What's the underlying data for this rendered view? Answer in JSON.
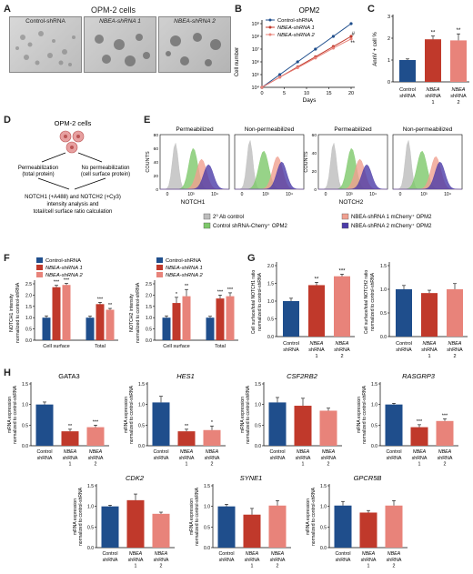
{
  "panels": {
    "A": {
      "letter": "A",
      "title": "OPM-2 cells",
      "image_labels": [
        "Control-shRNA",
        "NBEA-shRNA 1",
        "NBEA-shRNA 2"
      ]
    },
    "B": {
      "letter": "B",
      "chart_data": {
        "type": "line",
        "title": "OPM2",
        "xlabel": "Days",
        "ylabel": "Cell number",
        "x": [
          0,
          4,
          8,
          12,
          16,
          20
        ],
        "x_ticks": [
          "0",
          "5",
          "10",
          "15",
          "20"
        ],
        "y_ticks": [
          "10⁴",
          "10⁵",
          "10⁶",
          "10⁷",
          "10⁸",
          "10⁹"
        ],
        "log_y": true,
        "series": [
          {
            "name": "Control-shRNA",
            "color": "#1f4e8c",
            "values": [
              10000,
              100000,
              1000000,
              10000000,
              100000000,
              1000000000
            ]
          },
          {
            "name": "NBEA-shRNA 1",
            "color": "#c0392b",
            "values": [
              10000,
              63000,
              400000,
              2500000,
              16000000,
              100000000
            ]
          },
          {
            "name": "NBEA-shRNA 2",
            "color": "#e8837a",
            "values": [
              10000,
              63000,
              350000,
              2000000,
              12000000,
              63000000
            ]
          }
        ],
        "annotations": [
          "#",
          "**"
        ]
      }
    },
    "C": {
      "letter": "C",
      "chart_data": {
        "type": "bar",
        "ylabel": "AnnV + cell %",
        "y_ticks": [
          "0",
          "1",
          "2",
          "3"
        ],
        "ylim": [
          0,
          3
        ],
        "categories": [
          "Control shRNA",
          "NBEA shRNA 1",
          "NBEA shRNA 2"
        ],
        "values": [
          1.0,
          1.95,
          1.9
        ],
        "errors": [
          0.05,
          0.15,
          0.3
        ],
        "sig": [
          "",
          "**",
          "**"
        ],
        "colors": [
          "#1f4e8c",
          "#c0392b",
          "#e8837a"
        ]
      }
    },
    "D": {
      "letter": "D",
      "title": "OPM-2 cells",
      "left_text": [
        "Permeabilization",
        "(total protein)"
      ],
      "right_text": [
        "No permeabilization",
        "(cell surface protein)"
      ],
      "bottom_text": [
        "NOTCH1 (+A488) and NOTCH2 (+Cy3)",
        "intensity analysis and",
        "total/cell surface ratio calculation"
      ]
    },
    "E": {
      "letter": "E",
      "left": {
        "x_label": "NOTCH1",
        "titles": [
          "Permeabilized",
          "Non-permeabilized"
        ]
      },
      "right": {
        "x_label": "NOTCH2",
        "titles": [
          "Permeabilized",
          "Non-permeabilized"
        ]
      },
      "y_label": "COUNTS",
      "x_ticks": [
        "0",
        "10³",
        "10⁴"
      ],
      "y_ticks_left": [
        "0",
        "20",
        "40",
        "60",
        "80"
      ],
      "y_ticks_right": [
        "0",
        "20",
        "40",
        "60"
      ],
      "legend": [
        {
          "label": "2⁰ Ab control",
          "color": "#bdbdbd"
        },
        {
          "label": "NBEA-shRNA 1 mCherry⁺ OPM2",
          "color": "#f0a090"
        },
        {
          "label": "Control shRNA-Cherry⁺ OPM2",
          "color": "#7dc86a"
        },
        {
          "label": "NBEA-shRNA 2 mCherry⁺ OPM2",
          "color": "#4b3ba8"
        }
      ]
    },
    "F": {
      "letter": "F",
      "legend": [
        "Control-shRNA",
        "NBEA-shRNA 1",
        "NBEA-shRNA 2"
      ],
      "chart_data": [
        {
          "type": "bar",
          "ylabel": "NOTCH1 intensity normalized to control-shRNA",
          "categories": [
            "Cell surface",
            "Total"
          ],
          "y_ticks": [
            "0.0",
            "0.5",
            "1.0",
            "1.5",
            "2.0",
            "2.5"
          ],
          "ylim": [
            0,
            2.8
          ],
          "series": [
            {
              "name": "Control-shRNA",
              "values": [
                1.0,
                1.0
              ],
              "errors": [
                0.08,
                0.07
              ]
            },
            {
              "name": "NBEA-shRNA 1",
              "values": [
                2.35,
                1.6
              ],
              "errors": [
                0.08,
                0.08
              ]
            },
            {
              "name": "NBEA-shRNA 2",
              "values": [
                2.45,
                1.35
              ],
              "errors": [
                0.07,
                0.06
              ]
            }
          ],
          "sig": [
            [
              "",
              "***",
              "***"
            ],
            [
              "",
              "***",
              "**"
            ]
          ]
        },
        {
          "type": "bar",
          "ylabel": "NOTCH2 intensity normalized to control-shRNA",
          "categories": [
            "Cell surface",
            "Total"
          ],
          "y_ticks": [
            "0.0",
            "0.5",
            "1.0",
            "1.5",
            "2.0",
            "2.5"
          ],
          "ylim": [
            0,
            2.8
          ],
          "series": [
            {
              "name": "Control-shRNA",
              "values": [
                1.0,
                1.0
              ],
              "errors": [
                0.08,
                0.06
              ]
            },
            {
              "name": "NBEA-shRNA 1",
              "values": [
                1.65,
                1.85
              ],
              "errors": [
                0.25,
                0.15
              ]
            },
            {
              "name": "NBEA-shRNA 2",
              "values": [
                1.95,
                1.95
              ],
              "errors": [
                0.3,
                0.15
              ]
            }
          ],
          "sig": [
            [
              "",
              "*",
              "**"
            ],
            [
              "",
              "***",
              "***"
            ]
          ]
        }
      ]
    },
    "G": {
      "letter": "G",
      "chart_data": [
        {
          "type": "bar",
          "ylabel": "Cell surface/total NOTCH1 ratio normalized to control-shRNA",
          "categories": [
            "Control shRNA",
            "NBEA shRNA 1",
            "NBEA shRNA 2"
          ],
          "y_ticks": [
            "0.0",
            "0.5",
            "1.0",
            "1.5",
            "2.0"
          ],
          "ylim": [
            0,
            2.0
          ],
          "values": [
            1.0,
            1.45,
            1.7
          ],
          "errors": [
            0.08,
            0.08,
            0.06
          ],
          "sig": [
            "",
            "**",
            "***"
          ]
        },
        {
          "type": "bar",
          "ylabel": "Cell surface/total NOTCH2 ratio normalized to control-shRNA",
          "categories": [
            "Control shRNA",
            "NBEA shRNA 1",
            "NBEA shRNA 2"
          ],
          "y_ticks": [
            "0.0",
            "0.5",
            "1.0",
            "1.5"
          ],
          "ylim": [
            0,
            1.5
          ],
          "values": [
            1.0,
            0.92,
            1.0
          ],
          "errors": [
            0.08,
            0.06,
            0.12
          ],
          "sig": [
            "",
            "",
            ""
          ]
        }
      ]
    },
    "H": {
      "letter": "H",
      "ylabel": "mRNA expression normalized to control-shRNA",
      "categories": [
        "Control shRNA",
        "NBEA shRNA 1",
        "NBEA shRNA 2"
      ],
      "charts": [
        {
          "gene": "GATA3",
          "italic": false,
          "values": [
            1.0,
            0.35,
            0.45
          ],
          "errors": [
            0.06,
            0.05,
            0.05
          ],
          "sig": [
            "",
            "**",
            "***"
          ]
        },
        {
          "gene": "HES1",
          "italic": true,
          "values": [
            1.05,
            0.35,
            0.38
          ],
          "errors": [
            0.15,
            0.05,
            0.1
          ],
          "sig": [
            "",
            "**",
            "*"
          ]
        },
        {
          "gene": "CSF2RB2",
          "italic": true,
          "values": [
            1.05,
            0.97,
            0.85
          ],
          "errors": [
            0.12,
            0.18,
            0.06
          ],
          "sig": [
            "",
            "",
            ""
          ]
        },
        {
          "gene": "RASGRP3",
          "italic": true,
          "values": [
            1.0,
            0.45,
            0.6
          ],
          "errors": [
            0.03,
            0.06,
            0.05
          ],
          "sig": [
            "",
            "***",
            "***"
          ]
        },
        {
          "gene": "CDK2",
          "italic": true,
          "values": [
            1.0,
            1.15,
            0.82
          ],
          "errors": [
            0.03,
            0.15,
            0.04
          ],
          "sig": [
            "",
            "",
            ""
          ]
        },
        {
          "gene": "SYNE1",
          "italic": true,
          "values": [
            1.0,
            0.8,
            1.02
          ],
          "errors": [
            0.05,
            0.15,
            0.12
          ],
          "sig": [
            "",
            "",
            ""
          ]
        },
        {
          "gene": "GPCR5B",
          "italic": true,
          "values": [
            1.02,
            0.85,
            1.02
          ],
          "errors": [
            0.1,
            0.05,
            0.12
          ],
          "sig": [
            "",
            "",
            ""
          ]
        }
      ],
      "y_ticks": [
        "0.0",
        "0.5",
        "1.0",
        "1.5"
      ],
      "ylim": [
        0,
        1.5
      ]
    }
  },
  "colors": {
    "control": "#1f4e8c",
    "nbea1": "#c0392b",
    "nbea2": "#e8837a"
  }
}
